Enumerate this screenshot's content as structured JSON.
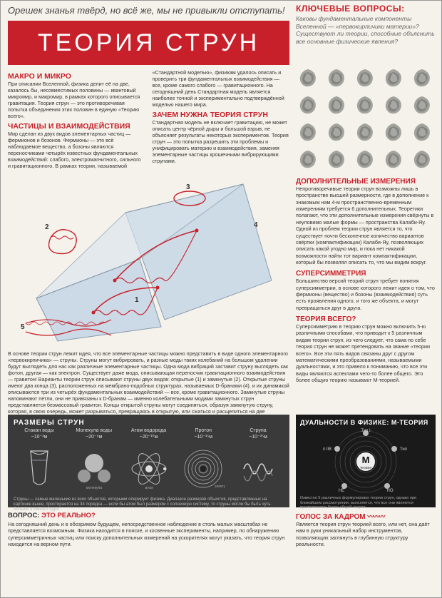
{
  "colors": {
    "accent": "#c8202a",
    "bg": "#f5f2eb",
    "dark": "#3a3a3a",
    "darker": "#1a1a1a",
    "text": "#333333",
    "muted": "#666666"
  },
  "epigraph": "Орешек знанья твёрд, но всё же, мы не привыкли отступать!",
  "title": "ТЕОРИЯ СТРУН",
  "key_questions": {
    "heading": "КЛЮЧЕВЫЕ ВОПРОСЫ:",
    "body": "Каковы фундаментальные компоненты Вселенной — «первокирпичики материи»? Существуют ли теории, способные объяснить все основные физические явления?"
  },
  "macro_micro": {
    "heading": "МАКРО И МИКРО",
    "body": "При описании Вселенной, физика делит её на две, казалось бы, несовместимых половины — квантовый микромир, и макромир, в рамках которого описывается гравитация. Теория струн — это противоречивая попытка объединения этих половин в единую «Теорию всего»."
  },
  "particles": {
    "heading": "ЧАСТИЦЫ И ВЗАИМОДЕЙСТВИЯ",
    "body": "Мир сделан из двух видов элементарных частиц — фермионов и бозонов. Фермионы — это всё наблюдаемое вещество, а бозоны являются переносчиками четырёх известных фундаментальных взаимодействий: слабого, электромагнитного, сильного и гравитационного. В рамках теории, называемой «Стандартной моделью», физикам удалось описать и проверить три фундаментальных взаимодействия — все, кроме самого слабого — гравитационного. На сегодняшний день Стандартная модель является наиболее точной и экспериментально подтверждённой моделью нашего мира."
  },
  "why_needed": {
    "heading": "ЗАЧЕМ НУЖНА ТЕОРИЯ СТРУН",
    "body": "Стандартная модель не включает гравитацию, не может описать центр чёрной дыры и большой взрыв, не объясняет результаты некоторых экспериментов. Теория струн — это попытка разрешить эти проблемы и унифицировать материю и взаимодействия, заменяя элементарные частицы крошечными вибрирующими струнами."
  },
  "diagram": {
    "type": "infographic",
    "labels": [
      "1",
      "2",
      "3",
      "4",
      "5"
    ],
    "cube_color": "#c7d8e6",
    "cube_edge": "#7a8fa3",
    "string_color": "#c8202a",
    "brane_color": "#b3c5d4",
    "background": "#f5f2eb"
  },
  "below_diagram": "В основе теории струн лежит идея, что все элементарные частицы можно представить в виде одного элементарного «первокирпичика» — струны. Струны могут вибрировать, и разные моды таких колебаний на большом удалении будут выглядеть для нас как различные элементарные частицы. Одна мода вибраций заставит струну выглядеть как фотон, другая — как электрон. Существует даже мода, описывающая переносчик гравитационного взаимодействия — гравитон! Варианты теории струн описывают струны двух видов: открытые (1) и замкнутые (2). Открытые струны имеют два конца (3), расположенных на мембрано-подобных структурах, называемых D-бранами (4), и их динамикой описываются три из четырёх фундаментальных взаимодействий — все, кроме гравитационного. Замкнутые струны напоминают петли, они не привязаны к D-бранам — именно колебательными модами замкнутых струн представляется безмассовый гравитон. Концы открытой струны могут соединяться, образуя замкнутую струну, которая, в свою очередь, может разрываться, превращаясь в открытую, или сжаться и расщепиться на две замкнутые струны (5) — таким образом в теории струн гравитационное взаимодействие объединяется со всеми остальными.",
  "sizes": {
    "heading": "РАЗМЕРЫ СТРУН",
    "items": [
      {
        "label": "Стакан воды",
        "value": "~10⁻¹м",
        "icon": "glass"
      },
      {
        "label": "Молекула воды",
        "value": "~20⁻⁹м",
        "icon": "molecule"
      },
      {
        "label": "Атом водорода",
        "value": "~20⁻¹⁰м",
        "icon": "atom"
      },
      {
        "label": "Протон",
        "value": "~10⁻¹⁵м",
        "icon": "proton"
      },
      {
        "label": "Струна",
        "value": "~10⁻³⁵м",
        "icon": "string"
      }
    ],
    "micro_labels": {
      "molecule": "молекула",
      "atom": "атом",
      "electron": "электрон"
    },
    "caption": "Струны — самые маленькие из всех объектов, которыми оперирует физика. Диапазон размеров объектов, представленных на картинке выше, простирается на 34 порядка — если бы атом был размером с солнечную систему, то струны могли бы быть чуть больше атомного ядра."
  },
  "question_real": {
    "heading_prefix": "ВОПРОС: ",
    "heading_em": "ЭТО РЕАЛЬНО?",
    "body": "На сегодняшний день и в обозримом будущем, непосредственное наблюдение в столь малых масштабах не представляется возможным. Физика находится в поиске, и косвенные эксперименты, например, по обнаружению суперсимметричных частиц или поиску дополнительных измерений на ускорителях могут указать, что теория струн находится на верном пути."
  },
  "extra_dims": {
    "heading": "ДОПОЛНИТЕЛЬНЫЕ ИЗМЕРЕНИЯ",
    "body": "Непротиворечивые теории струн возможны лишь в пространстве высшей размерности, где в дополнение к знакомым нам 4-м пространственно-временным измерениям требуется 6 дополнительных. Теоретики полагают, что эти дополнительные измерения свёрнуты в неуловимо малые формы — пространства Калаби-Яу. Одной из проблем теории струн является то, что существует почти бесконечное количество вариантов свёртки (компактификации) Калаби-Яу, позволяющих описать какой угодно мир, и пока нет никакой возможности найти тот вариант компактификации, который бы позволял описать то, что мы видим вокруг."
  },
  "supersymmetry": {
    "heading": "СУПЕРСИММЕТРИЯ",
    "body": "Большинство версий теорий струн требует понятия суперсимметрии, в основе которого лежит идея о том, что фермионы (вещество) и бозоны (взаимодействия) суть есть проявления одного, и того же объекта, и могут превращаться друг в друга."
  },
  "theory_all": {
    "heading": "ТЕОРИЯ ВСЕГО?",
    "body": "Суперсимметрию в теорию струн можно включить 5-ю различными способами, что приводит к 5 различным видам теории струн, из чего следует, что сама по себе теория струн не может претендовать на звание «теории всего». Все эти пять видов связаны друг с другом математическими преобразованиями, называемыми дуальностями, и это привело к пониманию, что все эти виды являются аспектами чего-то более общего. Это более общую теорию называют М-теорией."
  },
  "duality": {
    "heading": "ДУАЛЬНОСТИ В ФИЗИКЕ: М-ТЕОРИЯ",
    "center": "М",
    "center_sub": "теория",
    "nodes": [
      "Тип I",
      "Тип IIA",
      "HO",
      "HE",
      "Тип IIB"
    ],
    "ring_color": "#555555",
    "node_color": "#cccccc",
    "bg": "#1a1a1a",
    "caption": "Известно 5 различных формулировок теории струн, однако при ближайшем рассмотрении, выясняется, что все они являются проявлениями более общей теории."
  },
  "voice": {
    "heading": "ГОЛОС ЗА КАДРОМ",
    "wave_glyph": "〰〰〰",
    "body": "Является теория струн теорией всего, или нет, она даёт нам в руки уникальный набор инструментов, позволяющих заглянуть в глубинную структуру реальности."
  },
  "calabi_grid": {
    "rows": 4,
    "cols": 5,
    "shape_color": "#8a8a88"
  }
}
